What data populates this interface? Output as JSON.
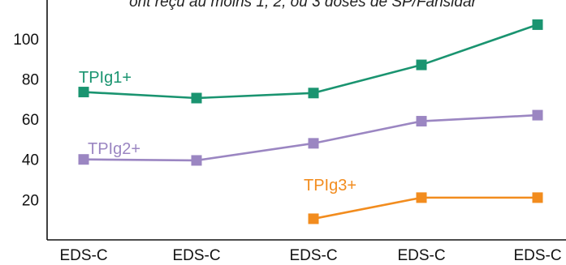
{
  "chart_data": {
    "type": "line",
    "title": "ont reçu au moins 1, 2, ou 3 doses de SP/Fansidar",
    "xlabel": "",
    "ylabel": "",
    "categories": [
      "EDS-C",
      "EDS-C",
      "EDS-C",
      "EDS-C",
      "EDS-C"
    ],
    "y_ticks": [
      "20",
      "40",
      "60",
      "80",
      "100"
    ],
    "ylim": [
      0,
      112
    ],
    "grid": false,
    "legend": "inline labels",
    "series": [
      {
        "name": "TPIg1+",
        "color": "#1a9470",
        "values": [
          73.5,
          70.5,
          73,
          87,
          107
        ]
      },
      {
        "name": "TPIg2+",
        "color": "#9b86c2",
        "values": [
          40,
          39.5,
          48,
          59,
          62
        ]
      },
      {
        "name": "TPIg3+",
        "color": "#f28c1e",
        "values": [
          null,
          null,
          10.5,
          21,
          21
        ]
      }
    ]
  }
}
